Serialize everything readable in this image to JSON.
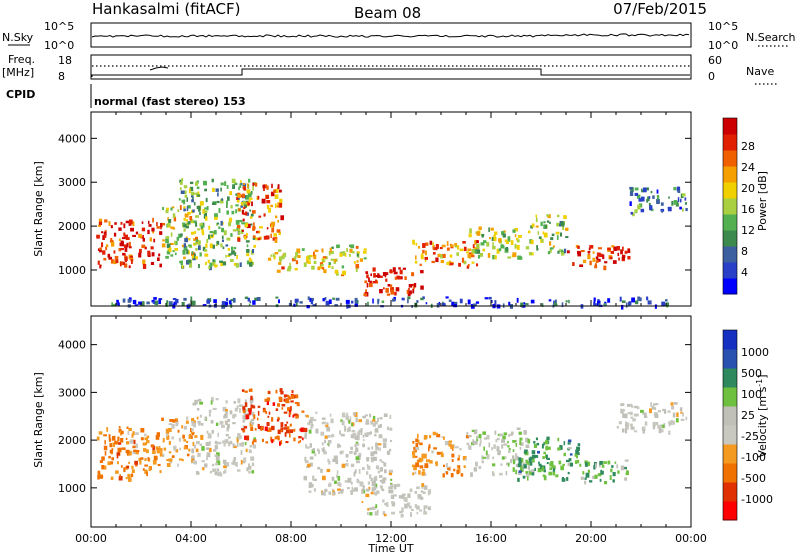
{
  "header": {
    "station": "Hankasalmi (fitACF)",
    "beam": "Beam 08",
    "date": "07/Feb/2015"
  },
  "top_panels": {
    "nsky_label": "N.Sky",
    "nsearch_label": "N.Search",
    "noise_ticks": [
      "10^5",
      "10^0"
    ],
    "freq_label": "Freq.",
    "freq_unit": "[MHz]",
    "freq_ticks": [
      "18",
      "8"
    ],
    "nave_label": "Nave",
    "nave_ticks": [
      "60",
      "0"
    ],
    "cpid_label": "CPID",
    "cpid_text": "normal (fast stereo) 153"
  },
  "chart_data": [
    {
      "type": "heatmap",
      "name": "power",
      "xlabel": "",
      "ylabel": "Slant Range [km]",
      "xlim": [
        0,
        24
      ],
      "ylim": [
        180,
        4600
      ],
      "yticks": [
        1000,
        2000,
        3000,
        4000
      ],
      "colorbar_label": "Power [dB]",
      "colorbar_ticks": [
        "28",
        "24",
        "20",
        "16",
        "12",
        "8",
        "4"
      ],
      "colorbar_colors": [
        "#0000ff",
        "#2a3fc8",
        "#3c5fa0",
        "#3d8a4e",
        "#52b050",
        "#a8d040",
        "#f0d000",
        "#f5a000",
        "#f06000",
        "#e02000",
        "#cc0000"
      ],
      "palette_order": "low to high",
      "features": [
        {
          "x": [
            0.2,
            2.8
          ],
          "range": [
            1100,
            2200
          ],
          "level": 0.9
        },
        {
          "x": [
            2.8,
            4.2
          ],
          "range": [
            1300,
            2500
          ],
          "level": 0.55
        },
        {
          "x": [
            3.5,
            6.5
          ],
          "range": [
            1100,
            3100
          ],
          "level": 0.4
        },
        {
          "x": [
            5.8,
            7.6
          ],
          "range": [
            1700,
            3000
          ],
          "level": 0.78
        },
        {
          "x": [
            7.0,
            9.5
          ],
          "range": [
            1000,
            1500
          ],
          "level": 0.65
        },
        {
          "x": [
            9.5,
            11.0
          ],
          "range": [
            900,
            1600
          ],
          "level": 0.55
        },
        {
          "x": [
            10.8,
            13.2
          ],
          "range": [
            450,
            1100
          ],
          "level": 0.98
        },
        {
          "x": [
            12.8,
            15.5
          ],
          "range": [
            1100,
            1700
          ],
          "level": 0.75
        },
        {
          "x": [
            15.0,
            17.5
          ],
          "range": [
            1300,
            2000
          ],
          "level": 0.5
        },
        {
          "x": [
            17.5,
            19.0
          ],
          "range": [
            1400,
            2300
          ],
          "level": 0.45
        },
        {
          "x": [
            19.0,
            21.5
          ],
          "range": [
            1100,
            1600
          ],
          "level": 0.9
        },
        {
          "x": [
            21.5,
            23.8
          ],
          "range": [
            2300,
            2900
          ],
          "level": 0.25
        },
        {
          "x": [
            0.5,
            23.5
          ],
          "range": [
            200,
            400
          ],
          "level": 0.15
        }
      ]
    },
    {
      "type": "heatmap",
      "name": "velocity",
      "xlabel": "Time UT",
      "ylabel": "Slant Range [km]",
      "xlim": [
        0,
        24
      ],
      "ylim": [
        180,
        4600
      ],
      "yticks": [
        1000,
        2000,
        3000,
        4000
      ],
      "xticks": [
        "00:00",
        "04:00",
        "08:00",
        "12:00",
        "16:00",
        "20:00",
        "00:00"
      ],
      "colorbar_label": "Velocity [m s^-1]",
      "colorbar_ticks": [
        "1000",
        "500",
        "100",
        "25",
        "-25",
        "-100",
        "-500",
        "-1000"
      ],
      "colorbar_colors": [
        "#ff0000",
        "#e03000",
        "#f07000",
        "#f59a20",
        "#c8c8c0",
        "#c0c0b8",
        "#70c040",
        "#2e8a5e",
        "#2a50b0",
        "#1530c0"
      ],
      "palette_order": "low to high",
      "features": [
        {
          "x": [
            0.2,
            2.8
          ],
          "range": [
            1200,
            2300
          ],
          "level": -0.45
        },
        {
          "x": [
            2.8,
            4.2
          ],
          "range": [
            1500,
            2500
          ],
          "level": -0.3
        },
        {
          "x": [
            4.0,
            6.5
          ],
          "range": [
            1300,
            2900
          ],
          "level": 0.0
        },
        {
          "x": [
            6.0,
            8.5
          ],
          "range": [
            1900,
            3100
          ],
          "level": -0.7
        },
        {
          "x": [
            8.5,
            12.0
          ],
          "range": [
            900,
            2600
          ],
          "level": 0.0
        },
        {
          "x": [
            10.8,
            13.5
          ],
          "range": [
            450,
            1100
          ],
          "level": 0.0
        },
        {
          "x": [
            12.8,
            15.0
          ],
          "range": [
            1300,
            2200
          ],
          "level": -0.4
        },
        {
          "x": [
            15.0,
            17.5
          ],
          "range": [
            1300,
            2300
          ],
          "level": 0.05
        },
        {
          "x": [
            17.0,
            19.5
          ],
          "range": [
            1200,
            2100
          ],
          "level": 0.45
        },
        {
          "x": [
            19.5,
            21.4
          ],
          "range": [
            1100,
            1600
          ],
          "level": 0.3
        },
        {
          "x": [
            21.0,
            23.8
          ],
          "range": [
            2200,
            2800
          ],
          "level": 0.0
        }
      ]
    }
  ]
}
